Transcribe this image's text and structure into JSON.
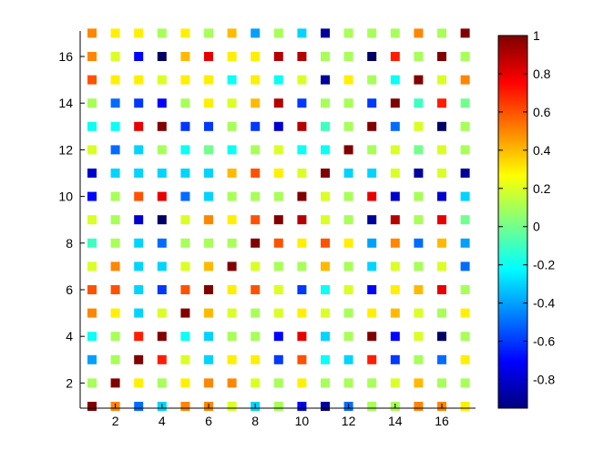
{
  "chart_data": {
    "type": "heatmap",
    "title": "",
    "xlabel": "",
    "ylabel": "",
    "xlim": [
      1,
      17
    ],
    "ylim": [
      1,
      17
    ],
    "x_ticks": [
      "2",
      "4",
      "6",
      "8",
      "10",
      "12",
      "14",
      "16"
    ],
    "y_ticks": [
      "2",
      "4",
      "6",
      "8",
      "10",
      "12",
      "14",
      "16"
    ],
    "colorbar": {
      "colormap": "jet",
      "range": [
        -0.95,
        1
      ],
      "ticks": [
        "1",
        "0.8",
        "0.6",
        "0.4",
        "0.2",
        "0",
        "-0.2",
        "-0.4",
        "-0.6",
        "-0.8"
      ]
    },
    "marker": "filled-square",
    "grid": false,
    "rows": [
      [
        0.5,
        0.3,
        0.3,
        0.1,
        0.3,
        0.1,
        0.4,
        -0.4,
        0.1,
        -0.3,
        -0.9,
        0.1,
        0.1,
        0.1,
        0.5,
        0.1,
        1.0
      ],
      [
        0.5,
        0.2,
        -0.7,
        -1.0,
        0.4,
        0.8,
        0.3,
        0.3,
        0.9,
        0.9,
        0.1,
        0.1,
        -1.0,
        0.7,
        0.1,
        1.0,
        0.1
      ],
      [
        0.6,
        0.3,
        0.3,
        0.2,
        0.3,
        0.3,
        -0.2,
        0.3,
        -0.2,
        0.2,
        -0.9,
        0.3,
        0.1,
        -0.2,
        1.0,
        0.2,
        0.5
      ],
      [
        0.1,
        -0.5,
        -0.6,
        -0.7,
        0.1,
        0.3,
        0.2,
        0.4,
        0.9,
        -0.6,
        0.1,
        0.1,
        -0.6,
        1.0,
        -0.1,
        0.7,
        0.0
      ],
      [
        -0.2,
        -0.2,
        0.8,
        1.0,
        -0.6,
        -0.6,
        0.1,
        -0.6,
        -0.8,
        0.9,
        -0.1,
        0.1,
        1.0,
        -0.5,
        0.2,
        -1.0,
        0.1
      ],
      [
        0.2,
        -0.5,
        -0.3,
        0.1,
        -0.2,
        0.0,
        -0.2,
        0.1,
        0.2,
        -0.2,
        -0.2,
        1.0,
        0.1,
        0.2,
        0.0,
        0.2,
        0.1
      ],
      [
        -0.8,
        -0.3,
        -0.3,
        -0.3,
        -0.3,
        -0.3,
        0.4,
        0.6,
        0.3,
        0.2,
        1.0,
        -0.3,
        -0.3,
        0.2,
        -0.9,
        0.2,
        -0.9
      ],
      [
        -0.7,
        0.1,
        0.6,
        0.8,
        -0.5,
        -0.3,
        0.1,
        0.1,
        0.1,
        1.0,
        0.2,
        0.1,
        0.8,
        -0.8,
        0.1,
        -0.8,
        -0.3
      ],
      [
        0.2,
        0.1,
        -0.8,
        -1.0,
        0.2,
        0.5,
        0.3,
        0.6,
        1.0,
        0.9,
        0.2,
        0.1,
        -0.9,
        0.9,
        0.1,
        0.8,
        0.0
      ],
      [
        -0.1,
        0.1,
        -0.3,
        -0.5,
        0.1,
        0.1,
        0.1,
        1.0,
        0.6,
        0.3,
        0.6,
        0.3,
        -0.4,
        0.5,
        -0.5,
        0.4,
        -0.4
      ],
      [
        0.2,
        0.5,
        -0.3,
        -0.3,
        0.2,
        0.4,
        1.0,
        0.2,
        0.1,
        0.1,
        0.4,
        0.1,
        -0.3,
        0.2,
        0.1,
        0.2,
        -0.5
      ],
      [
        0.6,
        0.6,
        -0.3,
        -0.6,
        0.6,
        1.0,
        0.3,
        0.6,
        0.2,
        -0.6,
        -0.2,
        0.2,
        -0.7,
        0.3,
        0.4,
        0.8,
        0.1
      ],
      [
        0.5,
        0.3,
        -0.3,
        0.2,
        1.0,
        0.4,
        0.2,
        0.1,
        0.2,
        0.3,
        0.2,
        0.1,
        0.3,
        0.4,
        0.2,
        0.1,
        0.3
      ],
      [
        -0.2,
        0.1,
        0.7,
        1.0,
        -0.2,
        -0.3,
        0.1,
        0.1,
        -0.7,
        0.8,
        -0.3,
        0.1,
        1.0,
        -0.7,
        0.2,
        -1.0,
        0.1
      ],
      [
        -0.4,
        0.1,
        1.0,
        0.7,
        0.2,
        -0.3,
        0.3,
        0.3,
        -0.6,
        0.6,
        -0.2,
        -0.3,
        0.7,
        -0.6,
        0.1,
        -0.5,
        0.3
      ],
      [
        0.1,
        1.0,
        0.3,
        0.1,
        0.3,
        0.5,
        0.5,
        0.2,
        0.1,
        0.3,
        0.1,
        0.1,
        0.1,
        0.2,
        0.4,
        0.1,
        0.1
      ],
      [
        1.0,
        0.5,
        -0.5,
        -0.3,
        0.5,
        0.5,
        0.2,
        -0.3,
        0.1,
        -0.7,
        -0.9,
        -0.5,
        0.1,
        0.1,
        0.5,
        0.5,
        0.3
      ]
    ],
    "rows_order": "top row is y=17, bottom row is y=1; column i is x=i+1"
  }
}
